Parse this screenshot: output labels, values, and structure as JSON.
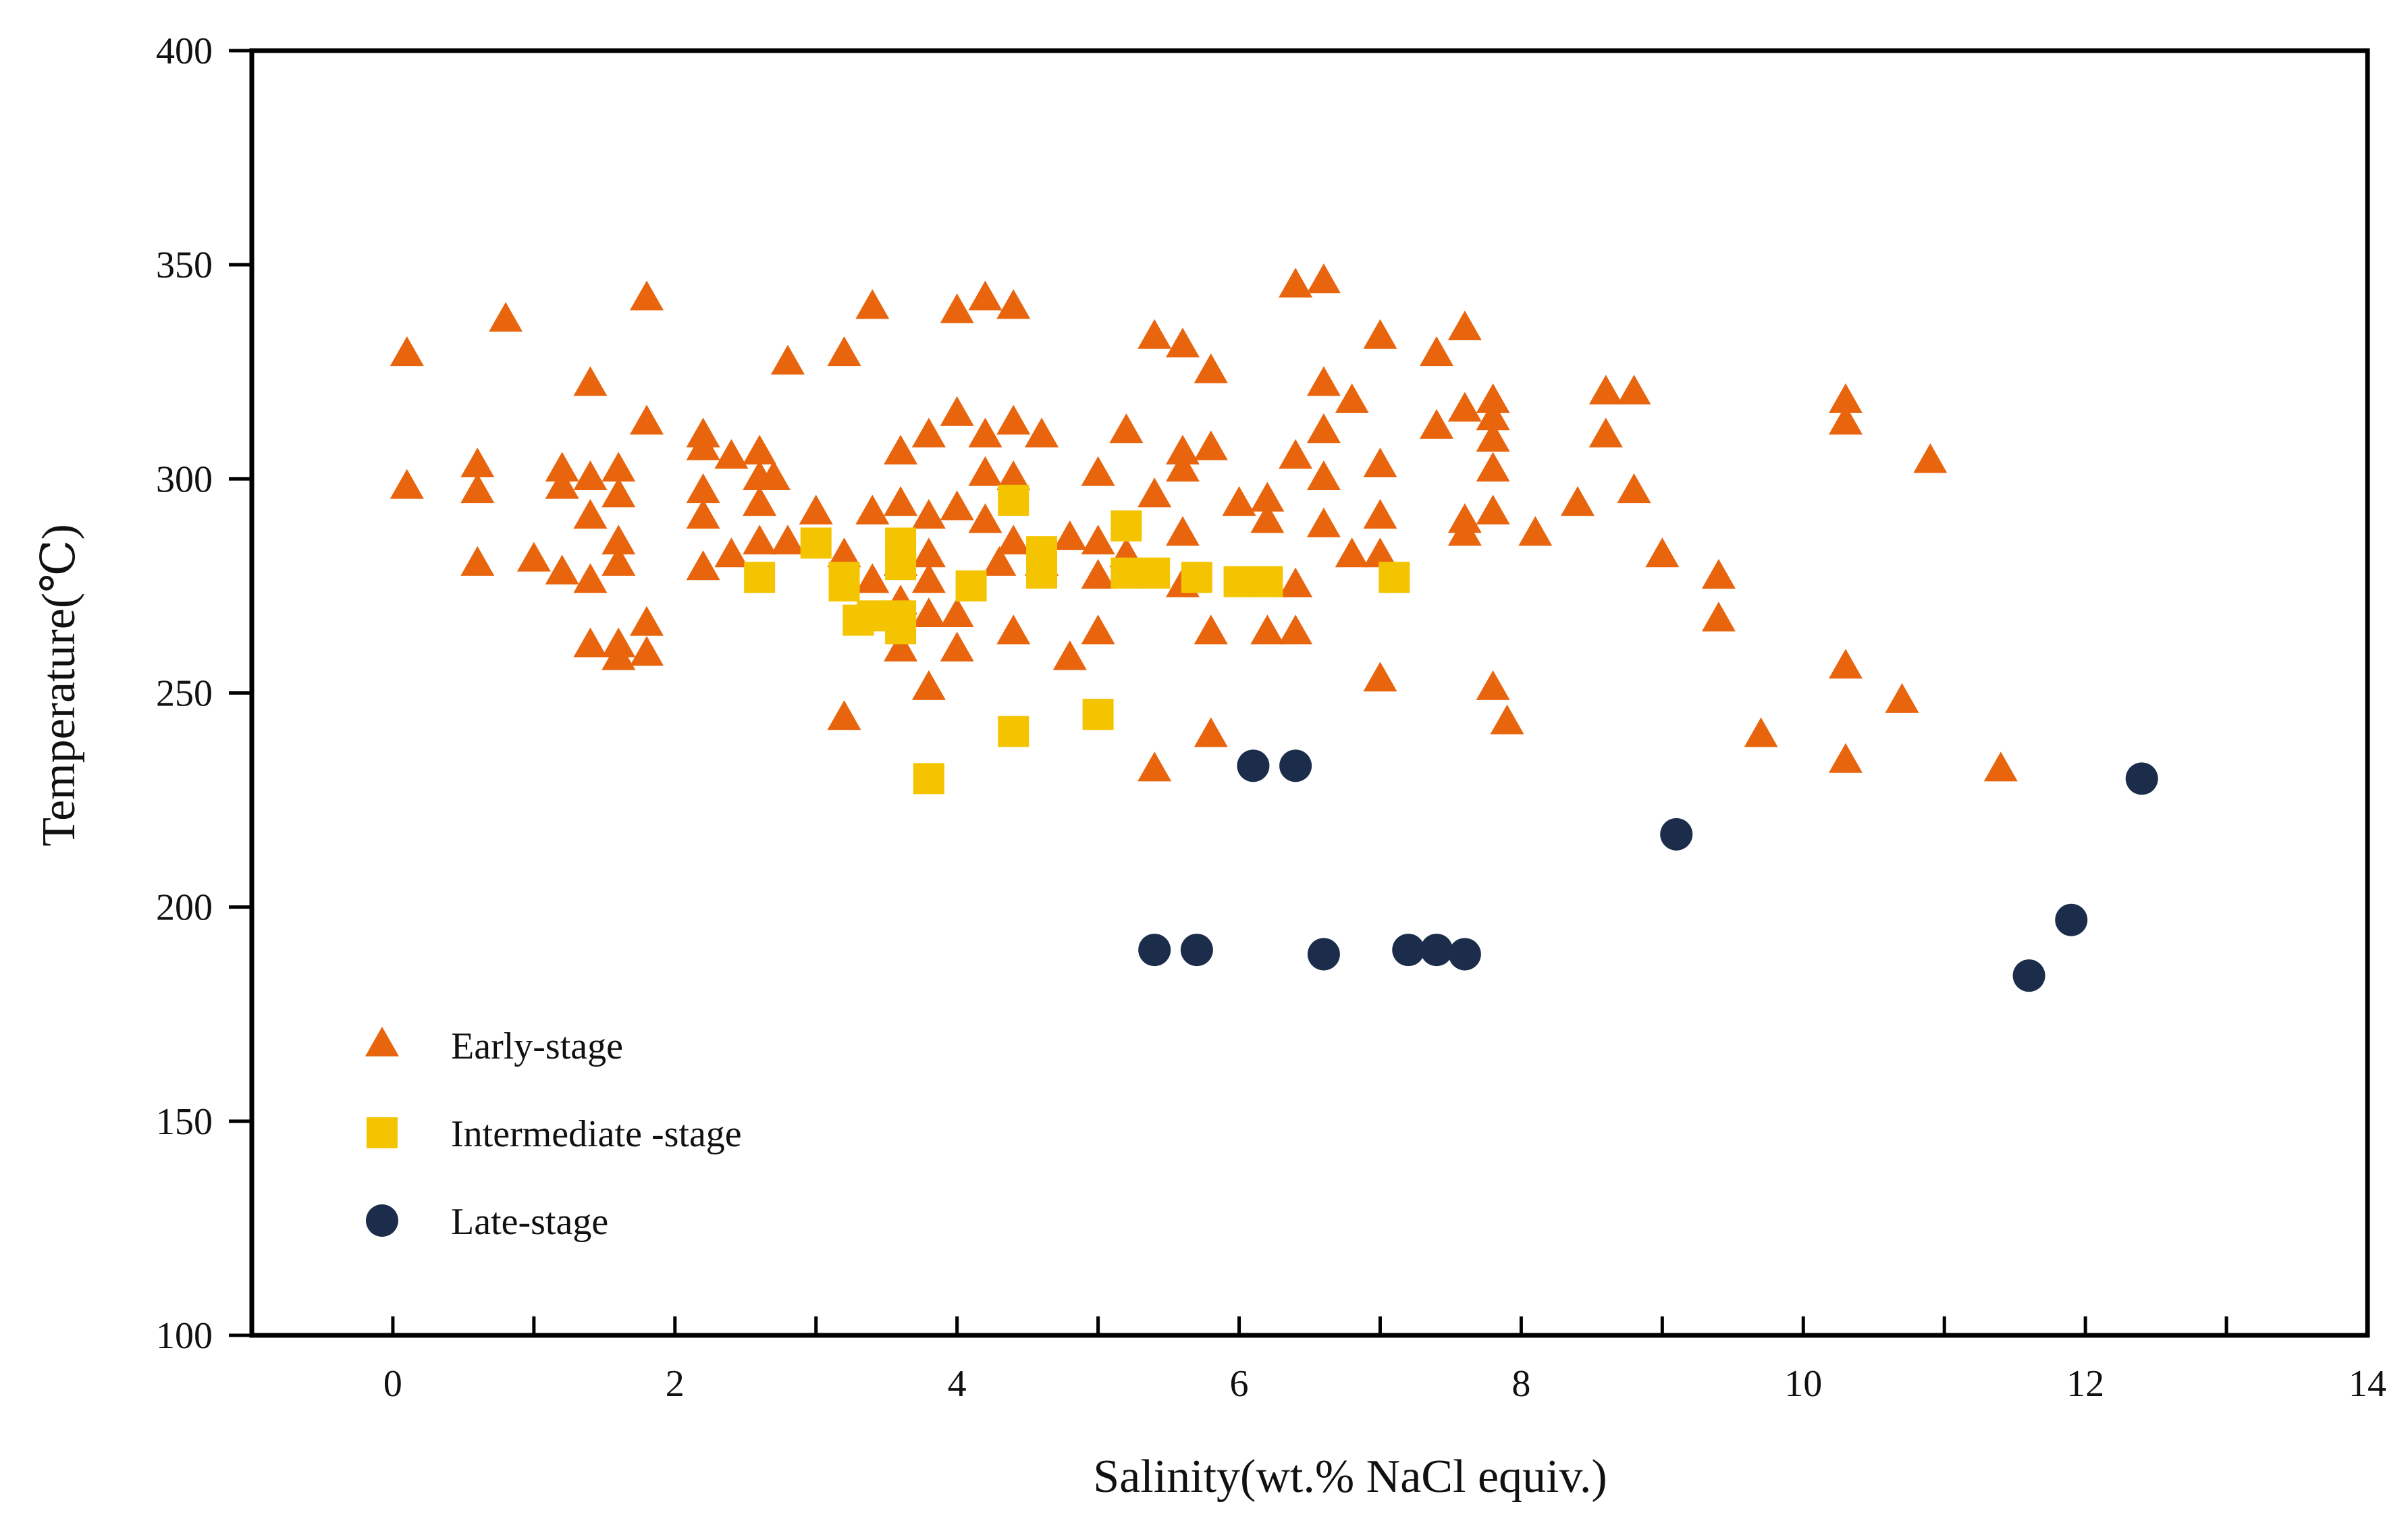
{
  "chart_data": {
    "type": "scatter",
    "title": "",
    "xlabel": "Salinity(wt.% NaCl equiv.)",
    "ylabel": "Temperature(℃)",
    "xlim": [
      -1,
      14
    ],
    "ylim": [
      100,
      400
    ],
    "x_ticks": [
      0,
      2,
      4,
      6,
      8,
      10,
      12,
      14
    ],
    "x_tick_labels": [
      "0",
      "2",
      "4",
      "6",
      "8",
      "10",
      "12",
      "14"
    ],
    "y_ticks": [
      100,
      150,
      200,
      250,
      300,
      350,
      400
    ],
    "y_tick_labels": [
      "100",
      "150",
      "200",
      "250",
      "300",
      "350",
      "400"
    ],
    "grid": false,
    "legend_position": "bottom-left",
    "colors": {
      "early": "#E8650E",
      "intermediate": "#F5C400",
      "late": "#1B2D4B",
      "axis": "#000000"
    },
    "series": [
      {
        "name": "Early-stage",
        "marker": "triangle",
        "points": [
          [
            0.1,
            329
          ],
          [
            0.1,
            298
          ],
          [
            0.6,
            303
          ],
          [
            0.6,
            297
          ],
          [
            0.6,
            280
          ],
          [
            0.8,
            337
          ],
          [
            1.0,
            281
          ],
          [
            1.2,
            302
          ],
          [
            1.2,
            298
          ],
          [
            1.2,
            278
          ],
          [
            1.4,
            322
          ],
          [
            1.4,
            300
          ],
          [
            1.4,
            291
          ],
          [
            1.4,
            276
          ],
          [
            1.4,
            261
          ],
          [
            1.6,
            302
          ],
          [
            1.6,
            296
          ],
          [
            1.6,
            285
          ],
          [
            1.6,
            280
          ],
          [
            1.6,
            261
          ],
          [
            1.6,
            258
          ],
          [
            1.8,
            342
          ],
          [
            1.8,
            313
          ],
          [
            1.8,
            266
          ],
          [
            1.8,
            259
          ],
          [
            2.2,
            310
          ],
          [
            2.2,
            307
          ],
          [
            2.2,
            297
          ],
          [
            2.2,
            291
          ],
          [
            2.2,
            279
          ],
          [
            2.4,
            305
          ],
          [
            2.4,
            282
          ],
          [
            2.6,
            306
          ],
          [
            2.6,
            300
          ],
          [
            2.6,
            294
          ],
          [
            2.6,
            285
          ],
          [
            2.7,
            300
          ],
          [
            2.8,
            327
          ],
          [
            2.8,
            285
          ],
          [
            3.0,
            292
          ],
          [
            3.2,
            329
          ],
          [
            3.2,
            282
          ],
          [
            3.2,
            244
          ],
          [
            3.4,
            340
          ],
          [
            3.4,
            292
          ],
          [
            3.4,
            276
          ],
          [
            3.6,
            306
          ],
          [
            3.6,
            294
          ],
          [
            3.6,
            280
          ],
          [
            3.6,
            271
          ],
          [
            3.6,
            260
          ],
          [
            3.8,
            310
          ],
          [
            3.8,
            291
          ],
          [
            3.8,
            282
          ],
          [
            3.8,
            276
          ],
          [
            3.8,
            268
          ],
          [
            3.8,
            251
          ],
          [
            4.0,
            339
          ],
          [
            4.0,
            315
          ],
          [
            4.0,
            293
          ],
          [
            4.0,
            268
          ],
          [
            4.0,
            260
          ],
          [
            4.2,
            342
          ],
          [
            4.2,
            310
          ],
          [
            4.2,
            301
          ],
          [
            4.2,
            290
          ],
          [
            4.3,
            280
          ],
          [
            4.4,
            340
          ],
          [
            4.4,
            313
          ],
          [
            4.4,
            300
          ],
          [
            4.4,
            285
          ],
          [
            4.4,
            264
          ],
          [
            4.6,
            310
          ],
          [
            4.6,
            280
          ],
          [
            4.8,
            286
          ],
          [
            4.8,
            258
          ],
          [
            5.0,
            301
          ],
          [
            5.0,
            285
          ],
          [
            5.0,
            277
          ],
          [
            5.0,
            264
          ],
          [
            5.2,
            311
          ],
          [
            5.2,
            282
          ],
          [
            5.4,
            333
          ],
          [
            5.4,
            296
          ],
          [
            5.4,
            232
          ],
          [
            5.6,
            331
          ],
          [
            5.6,
            306
          ],
          [
            5.6,
            302
          ],
          [
            5.6,
            287
          ],
          [
            5.6,
            275
          ],
          [
            5.8,
            325
          ],
          [
            5.8,
            307
          ],
          [
            5.8,
            264
          ],
          [
            5.8,
            240
          ],
          [
            6.0,
            294
          ],
          [
            6.2,
            295
          ],
          [
            6.2,
            290
          ],
          [
            6.2,
            264
          ],
          [
            6.4,
            345
          ],
          [
            6.4,
            305
          ],
          [
            6.4,
            275
          ],
          [
            6.4,
            264
          ],
          [
            6.6,
            346
          ],
          [
            6.6,
            322
          ],
          [
            6.6,
            311
          ],
          [
            6.6,
            300
          ],
          [
            6.6,
            289
          ],
          [
            6.8,
            318
          ],
          [
            6.8,
            282
          ],
          [
            7.0,
            333
          ],
          [
            7.0,
            303
          ],
          [
            7.0,
            291
          ],
          [
            7.0,
            282
          ],
          [
            7.0,
            253
          ],
          [
            7.4,
            329
          ],
          [
            7.4,
            312
          ],
          [
            7.6,
            335
          ],
          [
            7.6,
            316
          ],
          [
            7.6,
            290
          ],
          [
            7.6,
            287
          ],
          [
            7.8,
            318
          ],
          [
            7.8,
            314
          ],
          [
            7.8,
            309
          ],
          [
            7.8,
            302
          ],
          [
            7.8,
            292
          ],
          [
            7.8,
            251
          ],
          [
            7.9,
            243
          ],
          [
            8.1,
            287
          ],
          [
            8.4,
            294
          ],
          [
            8.6,
            320
          ],
          [
            8.6,
            310
          ],
          [
            8.8,
            320
          ],
          [
            8.8,
            297
          ],
          [
            9.0,
            282
          ],
          [
            9.4,
            277
          ],
          [
            9.4,
            267
          ],
          [
            9.7,
            240
          ],
          [
            10.3,
            318
          ],
          [
            10.3,
            313
          ],
          [
            10.3,
            256
          ],
          [
            10.3,
            234
          ],
          [
            10.7,
            248
          ],
          [
            10.9,
            304
          ],
          [
            11.4,
            232
          ]
        ]
      },
      {
        "name": "Intermediate -stage",
        "marker": "square",
        "points": [
          [
            2.6,
            277
          ],
          [
            3.0,
            285
          ],
          [
            3.2,
            277
          ],
          [
            3.2,
            275
          ],
          [
            3.3,
            267
          ],
          [
            3.4,
            268
          ],
          [
            3.6,
            285
          ],
          [
            3.6,
            280
          ],
          [
            3.6,
            268
          ],
          [
            3.6,
            265
          ],
          [
            3.8,
            230
          ],
          [
            4.1,
            275
          ],
          [
            4.4,
            295
          ],
          [
            4.4,
            241
          ],
          [
            4.6,
            283
          ],
          [
            4.6,
            278
          ],
          [
            5.0,
            245
          ],
          [
            5.2,
            289
          ],
          [
            5.2,
            278
          ],
          [
            5.4,
            278
          ],
          [
            5.7,
            277
          ],
          [
            6.0,
            276
          ],
          [
            6.2,
            276
          ],
          [
            7.1,
            277
          ]
        ]
      },
      {
        "name": "Late-stage",
        "marker": "circle",
        "points": [
          [
            6.1,
            233
          ],
          [
            6.4,
            233
          ],
          [
            5.4,
            190
          ],
          [
            5.7,
            190
          ],
          [
            6.6,
            189
          ],
          [
            7.2,
            190
          ],
          [
            7.4,
            190
          ],
          [
            7.6,
            189
          ],
          [
            9.1,
            217
          ],
          [
            11.6,
            184
          ],
          [
            11.9,
            197
          ],
          [
            12.4,
            230
          ]
        ]
      }
    ]
  }
}
